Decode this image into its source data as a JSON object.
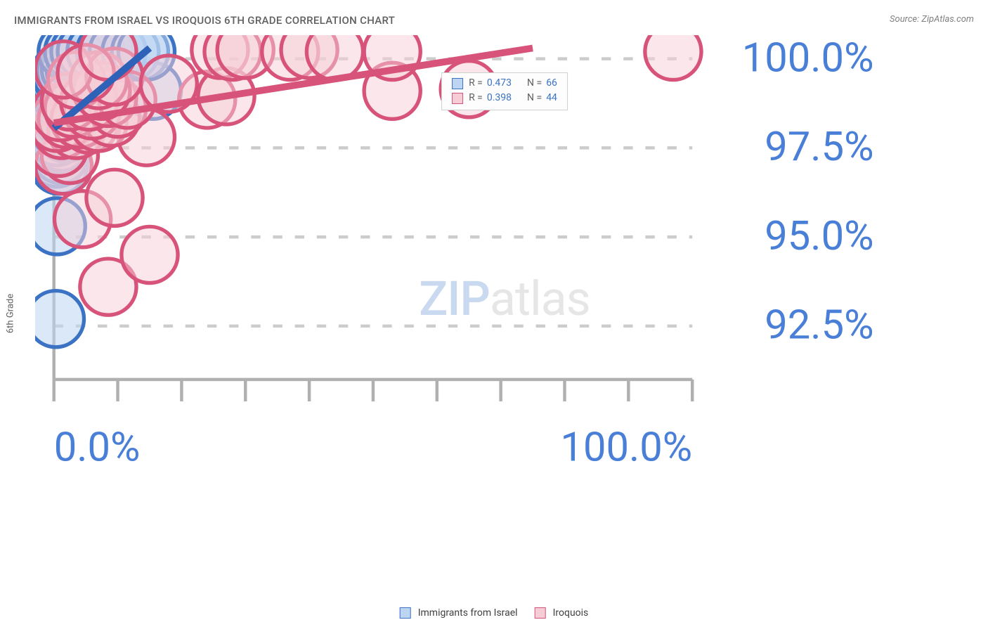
{
  "title": "IMMIGRANTS FROM ISRAEL VS IROQUOIS 6TH GRADE CORRELATION CHART",
  "source": "Source: ZipAtlas.com",
  "y_axis_label": "6th Grade",
  "watermark": {
    "zip": "ZIP",
    "atlas": "atlas",
    "zip_color": "#c8d9f0",
    "atlas_color": "#e6e6e6"
  },
  "legend_top": {
    "series": [
      {
        "swatch_fill": "#bdd5f2",
        "swatch_border": "#3b72c4",
        "r_label": "R =",
        "r_value": "0.473",
        "n_label": "N =",
        "n_value": "66",
        "r_color": "#3b72c4",
        "n_color": "#3b72c4"
      },
      {
        "swatch_fill": "#f6cdd7",
        "swatch_border": "#d8537a",
        "r_label": "R =",
        "r_value": "0.398",
        "n_label": "N =",
        "n_value": "44",
        "r_color": "#3b72c4",
        "n_color": "#3b72c4"
      }
    ],
    "label_color": "#606060"
  },
  "legend_bottom": [
    {
      "label": "Immigrants from Israel",
      "fill": "#bdd5f2",
      "border": "#3b72c4"
    },
    {
      "label": "Iroquois",
      "fill": "#f6cdd7",
      "border": "#d8537a"
    }
  ],
  "chart": {
    "type": "scatter",
    "xlim": [
      0,
      100
    ],
    "ylim": [
      91,
      100.4
    ],
    "x_ticks": [
      0,
      10,
      20,
      30,
      40,
      50,
      60,
      70,
      80,
      90,
      100
    ],
    "x_tick_labels": {
      "0": "0.0%",
      "100": "100.0%"
    },
    "y_ticks": [
      92.5,
      95.0,
      97.5,
      100.0
    ],
    "y_tick_labels": [
      "92.5%",
      "95.0%",
      "97.5%",
      "100.0%"
    ],
    "grid_color": "#cccccc",
    "axis_color": "#b0b0b0",
    "background_color": "#ffffff",
    "marker_radius": 9,
    "marker_stroke_width": 1.2,
    "line_width": 2.2,
    "series": [
      {
        "name": "Immigrants from Israel",
        "fill": "#bdd5f2",
        "fill_opacity": 0.55,
        "stroke": "#3b72c4",
        "trend_color": "#2d62b8",
        "trend": {
          "x1": 0,
          "y1": 98.05,
          "x2": 15,
          "y2": 100.3
        },
        "points": [
          [
            0.3,
            92.7
          ],
          [
            0.5,
            95.3
          ],
          [
            0.8,
            97.0
          ],
          [
            0.5,
            97.2
          ],
          [
            1.0,
            97.3
          ],
          [
            1.5,
            97.0
          ],
          [
            0.8,
            97.5
          ],
          [
            0.5,
            97.6
          ],
          [
            1.2,
            97.65
          ],
          [
            0.4,
            97.8
          ],
          [
            1.0,
            98.0
          ],
          [
            1.8,
            97.9
          ],
          [
            0.6,
            98.1
          ],
          [
            1.4,
            98.2
          ],
          [
            2.0,
            98.15
          ],
          [
            0.3,
            98.25
          ],
          [
            0.9,
            98.4
          ],
          [
            1.6,
            98.35
          ],
          [
            2.2,
            98.5
          ],
          [
            0.5,
            98.55
          ],
          [
            1.1,
            98.6
          ],
          [
            1.8,
            98.65
          ],
          [
            2.5,
            98.6
          ],
          [
            3.0,
            98.7
          ],
          [
            0.7,
            98.75
          ],
          [
            1.3,
            98.8
          ],
          [
            2.0,
            98.85
          ],
          [
            2.8,
            98.9
          ],
          [
            0.4,
            98.9
          ],
          [
            1.0,
            99.0
          ],
          [
            1.6,
            99.05
          ],
          [
            2.3,
            99.0
          ],
          [
            3.2,
            99.1
          ],
          [
            3.8,
            99.0
          ],
          [
            0.6,
            99.15
          ],
          [
            1.2,
            99.2
          ],
          [
            1.9,
            99.25
          ],
          [
            2.6,
            99.2
          ],
          [
            3.4,
            99.3
          ],
          [
            4.0,
            99.25
          ],
          [
            4.8,
            98.9
          ],
          [
            0.8,
            99.35
          ],
          [
            1.5,
            99.4
          ],
          [
            2.2,
            99.45
          ],
          [
            3.0,
            99.4
          ],
          [
            3.7,
            99.5
          ],
          [
            4.5,
            99.45
          ],
          [
            5.2,
            99.5
          ],
          [
            1.0,
            99.6
          ],
          [
            1.8,
            99.65
          ],
          [
            2.5,
            99.7
          ],
          [
            3.3,
            99.65
          ],
          [
            4.2,
            99.7
          ],
          [
            5.0,
            99.7
          ],
          [
            6.0,
            99.7
          ],
          [
            15.5,
            99.1
          ],
          [
            2.0,
            100.2
          ],
          [
            3.0,
            100.2
          ],
          [
            4.0,
            100.2
          ],
          [
            5.0,
            100.2
          ],
          [
            6.5,
            100.2
          ],
          [
            8.0,
            100.2
          ],
          [
            10.0,
            100.2
          ],
          [
            12.0,
            100.2
          ],
          [
            13.5,
            100.2
          ],
          [
            14.5,
            100.2
          ]
        ]
      },
      {
        "name": "Iroquois",
        "fill": "#f6cdd7",
        "fill_opacity": 0.5,
        "stroke": "#d8537a",
        "trend_color": "#d8537a",
        "trend": {
          "x1": 0,
          "y1": 98.2,
          "x2": 75,
          "y2": 100.3
        },
        "points": [
          [
            8.5,
            93.6
          ],
          [
            15.0,
            94.5
          ],
          [
            4.5,
            95.5
          ],
          [
            9.5,
            96.1
          ],
          [
            1.5,
            97.0
          ],
          [
            2.5,
            97.3
          ],
          [
            0.8,
            97.5
          ],
          [
            14.5,
            97.8
          ],
          [
            1.2,
            98.0
          ],
          [
            3.5,
            98.0
          ],
          [
            5.5,
            98.15
          ],
          [
            0.5,
            98.2
          ],
          [
            2.0,
            98.3
          ],
          [
            4.0,
            98.3
          ],
          [
            7.0,
            98.2
          ],
          [
            9.0,
            98.35
          ],
          [
            1.0,
            98.5
          ],
          [
            3.0,
            98.6
          ],
          [
            6.0,
            98.55
          ],
          [
            10.0,
            98.6
          ],
          [
            2.5,
            98.8
          ],
          [
            5.5,
            98.8
          ],
          [
            8.5,
            98.9
          ],
          [
            11.5,
            98.85
          ],
          [
            24.0,
            98.85
          ],
          [
            7.5,
            99.1
          ],
          [
            53.0,
            99.1
          ],
          [
            65.0,
            99.15
          ],
          [
            3.5,
            99.4
          ],
          [
            7.0,
            99.4
          ],
          [
            9.5,
            99.5
          ],
          [
            18.0,
            99.3
          ],
          [
            27.0,
            98.95
          ],
          [
            1.5,
            99.7
          ],
          [
            5.0,
            99.6
          ],
          [
            8.5,
            100.2
          ],
          [
            26.0,
            100.25
          ],
          [
            28.0,
            100.2
          ],
          [
            30.0,
            100.25
          ],
          [
            37.0,
            100.2
          ],
          [
            40.0,
            100.25
          ],
          [
            44.0,
            100.2
          ],
          [
            53.0,
            100.2
          ],
          [
            97.0,
            100.2
          ]
        ]
      }
    ]
  }
}
